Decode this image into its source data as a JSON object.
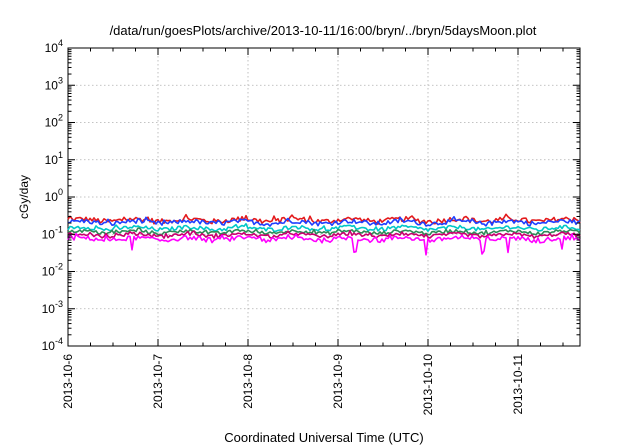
{
  "chart_data": {
    "type": "line",
    "title": "/data/run/goesPlots/archive/2013-10-11/16:00/bryn/../bryn/5daysMoon.plot",
    "xlabel": "Coordinated Universal Time (UTC)",
    "ylabel": "cGy/day",
    "yscale": "log",
    "ylim_exp": [
      -4,
      4
    ],
    "ytick_base": "10",
    "ytick_exponents": [
      "-4",
      "-3",
      "-2",
      "-1",
      "0",
      "1",
      "2",
      "3",
      "4"
    ],
    "xlim": [
      "2013-10-06",
      "2013-10-11 16:00"
    ],
    "xtick_labels": [
      "2013-10-6",
      "2013-10-7",
      "2013-10-8",
      "2013-10-9",
      "2013-10-10",
      "2013-10-11"
    ],
    "grid": true,
    "series": [
      {
        "color": "#e41a1c",
        "base": 0.24,
        "noise": 0.16,
        "dip": 0.0
      },
      {
        "color": "#1f3fff",
        "base": 0.21,
        "noise": 0.14,
        "dip": 0.0
      },
      {
        "color": "#00c8c8",
        "base": 0.145,
        "noise": 0.12,
        "dip": 0.0
      },
      {
        "color": "#2e8b57",
        "base": 0.115,
        "noise": 0.1,
        "dip": 0.0
      },
      {
        "color": "#c8006e",
        "base": 0.095,
        "noise": 0.1,
        "dip": 0.0
      },
      {
        "color": "#ff00ff",
        "base": 0.075,
        "noise": 0.14,
        "dip": 1.0
      }
    ]
  }
}
